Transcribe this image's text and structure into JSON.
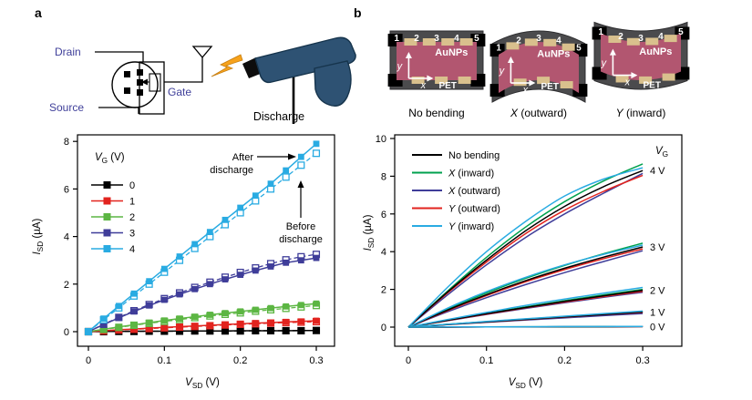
{
  "figure": {
    "panel_a_label": "a",
    "panel_b_label": "b"
  },
  "circuit": {
    "drain_label": "Drain",
    "source_label": "Source",
    "gate_label": "Gate",
    "discharge_label": "Discharge",
    "label_color": "#40409a",
    "gun_color": "#2e5273",
    "gun_outline": "#16344c",
    "bolt_color": "#f7a21b"
  },
  "devices": {
    "film_label": "AuNPs",
    "substrate_label": "PET",
    "x_axis_label": "x",
    "y_axis_label": "y",
    "electrode_numbers": [
      "1",
      "2",
      "3",
      "4",
      "5"
    ],
    "captions": [
      {
        "italic": "",
        "rest": "No bending"
      },
      {
        "italic": "X",
        "rest": " (outward)"
      },
      {
        "italic": "Y",
        "rest": " (inward)"
      }
    ],
    "colors": {
      "body": "#4b4b4d",
      "film": "#b25670",
      "pad": "#d9c08d"
    }
  },
  "chart_data": [
    {
      "panel": "a",
      "type": "line",
      "xlabel": {
        "main": "V",
        "sub": "SD",
        "unit": " (V)"
      },
      "ylabel": {
        "main": "I",
        "sub": "SD",
        "unit": " (µA)"
      },
      "xticks": [
        0,
        0.1,
        0.2,
        0.3
      ],
      "yticks": [
        0,
        2,
        4,
        6,
        8
      ],
      "xlim": [
        -0.015,
        0.324
      ],
      "ylim": [
        -0.6,
        8.3
      ],
      "legend_title": {
        "main": "V",
        "sub": "G",
        "unit": " (V)"
      },
      "x": [
        0,
        0.02,
        0.04,
        0.06,
        0.08,
        0.1,
        0.12,
        0.14,
        0.16,
        0.18,
        0.2,
        0.22,
        0.24,
        0.26,
        0.28,
        0.3
      ],
      "series": [
        {
          "vg": "0",
          "color": "#000000",
          "after": [
            0,
            0.01,
            0.01,
            0.02,
            0.02,
            0.02,
            0.03,
            0.03,
            0.03,
            0.03,
            0.04,
            0.04,
            0.04,
            0.04,
            0.05,
            0.05
          ],
          "before": [
            0,
            0.0,
            0.01,
            0.01,
            0.02,
            0.02,
            0.02,
            0.03,
            0.03,
            0.03,
            0.03,
            0.04,
            0.04,
            0.04,
            0.04,
            0.05
          ]
        },
        {
          "vg": "1",
          "color": "#e2231e",
          "after": [
            0,
            0.04,
            0.08,
            0.11,
            0.15,
            0.18,
            0.21,
            0.24,
            0.27,
            0.3,
            0.33,
            0.36,
            0.38,
            0.41,
            0.43,
            0.46
          ],
          "before": [
            0,
            0.03,
            0.07,
            0.1,
            0.13,
            0.16,
            0.19,
            0.22,
            0.25,
            0.28,
            0.31,
            0.33,
            0.36,
            0.38,
            0.4,
            0.42
          ]
        },
        {
          "vg": "2",
          "color": "#5cb643",
          "after": [
            0,
            0.1,
            0.2,
            0.29,
            0.38,
            0.47,
            0.55,
            0.63,
            0.71,
            0.78,
            0.85,
            0.92,
            0.99,
            1.06,
            1.12,
            1.18
          ],
          "before": [
            0,
            0.09,
            0.18,
            0.27,
            0.35,
            0.43,
            0.51,
            0.59,
            0.66,
            0.73,
            0.79,
            0.86,
            0.92,
            0.98,
            1.04,
            1.1
          ]
        },
        {
          "vg": "3",
          "color": "#3f3d99",
          "after": [
            0,
            0.3,
            0.58,
            0.85,
            1.1,
            1.34,
            1.57,
            1.79,
            2.0,
            2.2,
            2.39,
            2.57,
            2.74,
            2.9,
            3.0,
            3.1
          ],
          "before": [
            0,
            0.31,
            0.6,
            0.88,
            1.14,
            1.39,
            1.63,
            1.86,
            2.08,
            2.29,
            2.49,
            2.68,
            2.86,
            3.02,
            3.15,
            3.25
          ]
        },
        {
          "vg": "4",
          "color": "#29abe2",
          "after": [
            0,
            0.55,
            1.08,
            1.6,
            2.12,
            2.64,
            3.16,
            3.68,
            4.19,
            4.7,
            5.21,
            5.72,
            6.22,
            6.78,
            7.35,
            7.9
          ],
          "before": [
            0,
            0.5,
            1.0,
            1.5,
            2.0,
            2.5,
            3.0,
            3.5,
            4.0,
            4.5,
            5.0,
            5.5,
            6.0,
            6.5,
            7.0,
            7.5
          ]
        }
      ],
      "annotations": {
        "after_lines": [
          "After",
          "discharge"
        ],
        "before_lines": [
          "Before",
          "discharge"
        ]
      }
    },
    {
      "panel": "b",
      "type": "line",
      "xlabel": {
        "main": "V",
        "sub": "SD",
        "unit": " (V)"
      },
      "ylabel": {
        "main": "I",
        "sub": "SD",
        "unit": " (µA)"
      },
      "xticks": [
        0,
        0.1,
        0.2,
        0.3
      ],
      "yticks": [
        0,
        2,
        4,
        6,
        8,
        10
      ],
      "xlim": [
        -0.018,
        0.35
      ],
      "ylim": [
        -1.0,
        10.2
      ],
      "vg_header": {
        "main": "V",
        "sub": "G",
        "unit": ""
      },
      "legend": [
        {
          "italic": "",
          "rest": "No bending",
          "color": "#000000"
        },
        {
          "italic": "X",
          "rest": " (inward)",
          "color": "#00a14e"
        },
        {
          "italic": "X",
          "rest": " (outward)",
          "color": "#3f3d99"
        },
        {
          "italic": "Y",
          "rest": " (outward)",
          "color": "#e2231e"
        },
        {
          "italic": "Y",
          "rest": " (inward)",
          "color": "#29abe2"
        }
      ],
      "gate_labels": [
        {
          "text": "4 V",
          "y": 8.3
        },
        {
          "text": "3 V",
          "y": 4.25
        },
        {
          "text": "2 V",
          "y": 1.95
        },
        {
          "text": "1 V",
          "y": 0.8
        },
        {
          "text": "0 V",
          "y": 0.03
        }
      ],
      "x": [
        0,
        0.05,
        0.1,
        0.15,
        0.2,
        0.25,
        0.3
      ],
      "series": [
        {
          "condition": "X (outward)",
          "vg": "4 V",
          "color": "#3f3d99",
          "values": [
            0,
            1.7,
            3.3,
            4.75,
            6.0,
            7.1,
            8.15
          ]
        },
        {
          "condition": "Y (outward)",
          "vg": "4 V",
          "color": "#e2231e",
          "values": [
            0,
            1.8,
            3.45,
            4.95,
            6.2,
            7.2,
            8.05
          ]
        },
        {
          "condition": "X (inward)",
          "vg": "4 V",
          "color": "#00a14e",
          "values": [
            0,
            1.9,
            3.7,
            5.3,
            6.65,
            7.75,
            8.65
          ]
        },
        {
          "condition": "No bending",
          "vg": "4 V",
          "color": "#000000",
          "values": [
            0,
            1.85,
            3.55,
            5.1,
            6.4,
            7.45,
            8.3
          ]
        },
        {
          "condition": "Y (inward)",
          "vg": "4 V",
          "color": "#29abe2",
          "values": [
            0,
            2.1,
            4.0,
            5.6,
            6.95,
            7.85,
            8.45
          ]
        },
        {
          "condition": "X (outward)",
          "vg": "3 V",
          "color": "#3f3d99",
          "values": [
            0,
            0.81,
            1.56,
            2.25,
            2.89,
            3.48,
            4.05
          ]
        },
        {
          "condition": "Y (outward)",
          "vg": "3 V",
          "color": "#e2231e",
          "values": [
            0,
            0.87,
            1.67,
            2.4,
            3.05,
            3.63,
            4.15
          ]
        },
        {
          "condition": "X (inward)",
          "vg": "3 V",
          "color": "#00a14e",
          "values": [
            0,
            0.95,
            1.81,
            2.58,
            3.27,
            3.89,
            4.45
          ]
        },
        {
          "condition": "No bending",
          "vg": "3 V",
          "color": "#000000",
          "values": [
            0,
            0.9,
            1.72,
            2.46,
            3.12,
            3.71,
            4.25
          ]
        },
        {
          "condition": "Y (inward)",
          "vg": "3 V",
          "color": "#29abe2",
          "values": [
            0,
            1.0,
            1.88,
            2.64,
            3.3,
            3.86,
            4.35
          ]
        },
        {
          "condition": "X (outward)",
          "vg": "2 V",
          "color": "#3f3d99",
          "values": [
            0,
            0.34,
            0.67,
            0.99,
            1.29,
            1.58,
            1.85
          ]
        },
        {
          "condition": "Y (outward)",
          "vg": "2 V",
          "color": "#e2231e",
          "values": [
            0,
            0.35,
            0.69,
            1.02,
            1.33,
            1.62,
            1.9
          ]
        },
        {
          "condition": "X (inward)",
          "vg": "2 V",
          "color": "#00a14e",
          "values": [
            0,
            0.37,
            0.73,
            1.07,
            1.4,
            1.71,
            2.0
          ]
        },
        {
          "condition": "No bending",
          "vg": "2 V",
          "color": "#000000",
          "values": [
            0,
            0.36,
            0.71,
            1.04,
            1.36,
            1.66,
            1.95
          ]
        },
        {
          "condition": "Y (inward)",
          "vg": "2 V",
          "color": "#29abe2",
          "values": [
            0,
            0.4,
            0.78,
            1.15,
            1.49,
            1.8,
            2.1
          ]
        },
        {
          "condition": "X (outward)",
          "vg": "1 V",
          "color": "#3f3d99",
          "values": [
            0,
            0.13,
            0.25,
            0.37,
            0.49,
            0.61,
            0.72
          ]
        },
        {
          "condition": "Y (outward)",
          "vg": "1 V",
          "color": "#e2231e",
          "values": [
            0,
            0.14,
            0.27,
            0.4,
            0.53,
            0.66,
            0.78
          ]
        },
        {
          "condition": "X (inward)",
          "vg": "1 V",
          "color": "#00a14e",
          "values": [
            0,
            0.15,
            0.29,
            0.43,
            0.56,
            0.69,
            0.82
          ]
        },
        {
          "condition": "No bending",
          "vg": "1 V",
          "color": "#000000",
          "values": [
            0,
            0.14,
            0.28,
            0.41,
            0.54,
            0.67,
            0.8
          ]
        },
        {
          "condition": "Y (inward)",
          "vg": "1 V",
          "color": "#29abe2",
          "values": [
            0,
            0.15,
            0.3,
            0.44,
            0.58,
            0.72,
            0.85
          ]
        },
        {
          "condition": "X (outward)",
          "vg": "0 V",
          "color": "#3f3d99",
          "values": [
            0,
            0.0,
            0.01,
            0.01,
            0.02,
            0.02,
            0.03
          ]
        },
        {
          "condition": "Y (outward)",
          "vg": "0 V",
          "color": "#e2231e",
          "values": [
            0,
            0.0,
            0.01,
            0.01,
            0.02,
            0.02,
            0.03
          ]
        },
        {
          "condition": "X (inward)",
          "vg": "0 V",
          "color": "#00a14e",
          "values": [
            0,
            0.01,
            0.01,
            0.02,
            0.02,
            0.03,
            0.04
          ]
        },
        {
          "condition": "No bending",
          "vg": "0 V",
          "color": "#000000",
          "values": [
            0,
            0.0,
            0.01,
            0.01,
            0.02,
            0.02,
            0.03
          ]
        },
        {
          "condition": "Y (inward)",
          "vg": "0 V",
          "color": "#29abe2",
          "values": [
            0,
            0.01,
            0.01,
            0.02,
            0.03,
            0.03,
            0.04
          ]
        }
      ]
    }
  ]
}
